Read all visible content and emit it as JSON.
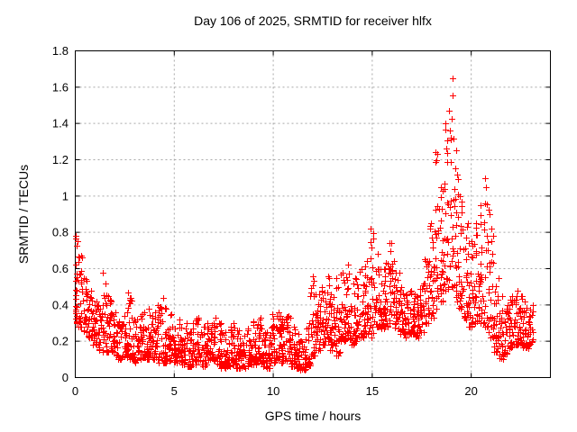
{
  "chart_data": {
    "type": "scatter",
    "title": "Day 106 of 2025, SRMTID for receiver hlfx",
    "xlabel": "GPS time / hours",
    "ylabel": "SRMTID / TECUs",
    "xlim": [
      0,
      24
    ],
    "ylim": [
      0,
      1.8
    ],
    "xticks": {
      "values": [
        0,
        5,
        10,
        15,
        20
      ],
      "labels": [
        "0",
        "5",
        "10",
        "15",
        "20"
      ]
    },
    "yticks": {
      "values": [
        0,
        0.2,
        0.4,
        0.6,
        0.8,
        1.0,
        1.2,
        1.4,
        1.6,
        1.8
      ],
      "labels": [
        "0",
        "0.2",
        "0.4",
        "0.6",
        "0.8",
        "1",
        "1.2",
        "1.4",
        "1.6",
        "1.8"
      ]
    },
    "grid": true,
    "grid_color": "#a8a8a8",
    "frame_color": "#000000",
    "legend": "none",
    "marker": {
      "shape": "plus",
      "size": 7,
      "color": "#ff0000"
    },
    "series": [
      {
        "name": "SRMTID",
        "color": "#ff0000",
        "points_per_bin": 24,
        "bin_width_hours": 0.25,
        "skew": 1.5,
        "seed": 7,
        "bins_format": [
          "hour",
          "min_tecu",
          "max_tecu"
        ],
        "bins": [
          [
            0,
            0.3,
            0.78
          ],
          [
            0.25,
            0.28,
            0.67
          ],
          [
            0.5,
            0.25,
            0.55
          ],
          [
            0.75,
            0.22,
            0.48
          ],
          [
            1,
            0.18,
            0.42
          ],
          [
            1.25,
            0.15,
            0.4
          ],
          [
            1.5,
            0.14,
            0.58
          ],
          [
            1.75,
            0.14,
            0.45
          ],
          [
            2,
            0.12,
            0.36
          ],
          [
            2.25,
            0.1,
            0.31
          ],
          [
            2.5,
            0.11,
            0.36
          ],
          [
            2.75,
            0.1,
            0.47
          ],
          [
            3,
            0.08,
            0.32
          ],
          [
            3.25,
            0.1,
            0.34
          ],
          [
            3.5,
            0.11,
            0.36
          ],
          [
            3.75,
            0.1,
            0.38
          ],
          [
            4,
            0.1,
            0.36
          ],
          [
            4.25,
            0.08,
            0.4
          ],
          [
            4.5,
            0.08,
            0.44
          ],
          [
            4.75,
            0.09,
            0.35
          ],
          [
            5,
            0.08,
            0.28
          ],
          [
            5.25,
            0.09,
            0.32
          ],
          [
            5.5,
            0.07,
            0.3
          ],
          [
            5.75,
            0.06,
            0.25
          ],
          [
            6,
            0.07,
            0.3
          ],
          [
            6.25,
            0.09,
            0.33
          ],
          [
            6.5,
            0.06,
            0.28
          ],
          [
            6.75,
            0.07,
            0.3
          ],
          [
            7,
            0.09,
            0.33
          ],
          [
            7.25,
            0.07,
            0.3
          ],
          [
            7.5,
            0.05,
            0.25
          ],
          [
            7.75,
            0.06,
            0.28
          ],
          [
            8,
            0.07,
            0.3
          ],
          [
            8.25,
            0.05,
            0.26
          ],
          [
            8.5,
            0.05,
            0.23
          ],
          [
            8.75,
            0.06,
            0.27
          ],
          [
            9,
            0.07,
            0.31
          ],
          [
            9.25,
            0.09,
            0.33
          ],
          [
            9.5,
            0.06,
            0.27
          ],
          [
            9.75,
            0.05,
            0.25
          ],
          [
            10,
            0.08,
            0.35
          ],
          [
            10.25,
            0.1,
            0.36
          ],
          [
            10.5,
            0.08,
            0.34
          ],
          [
            10.75,
            0.09,
            0.34
          ],
          [
            11,
            0.06,
            0.28
          ],
          [
            11.25,
            0.05,
            0.24
          ],
          [
            11.5,
            0.04,
            0.2
          ],
          [
            11.75,
            0.06,
            0.3
          ],
          [
            12,
            0.12,
            0.56
          ],
          [
            12.25,
            0.15,
            0.46
          ],
          [
            12.5,
            0.18,
            0.5
          ],
          [
            12.75,
            0.2,
            0.56
          ],
          [
            13,
            0.15,
            0.46
          ],
          [
            13.25,
            0.12,
            0.55
          ],
          [
            13.5,
            0.2,
            0.58
          ],
          [
            13.75,
            0.22,
            0.62
          ],
          [
            14,
            0.18,
            0.52
          ],
          [
            14.25,
            0.2,
            0.55
          ],
          [
            14.5,
            0.22,
            0.6
          ],
          [
            14.75,
            0.24,
            0.64
          ],
          [
            15,
            0.22,
            0.82
          ],
          [
            15.25,
            0.28,
            0.68
          ],
          [
            15.5,
            0.27,
            0.6
          ],
          [
            15.75,
            0.28,
            0.63
          ],
          [
            16,
            0.3,
            0.74
          ],
          [
            16.25,
            0.27,
            0.58
          ],
          [
            16.5,
            0.24,
            0.5
          ],
          [
            16.75,
            0.22,
            0.46
          ],
          [
            17,
            0.24,
            0.48
          ],
          [
            17.25,
            0.22,
            0.46
          ],
          [
            17.5,
            0.25,
            0.52
          ],
          [
            17.75,
            0.3,
            0.65
          ],
          [
            18,
            0.33,
            0.85
          ],
          [
            18.25,
            0.38,
            1.24
          ],
          [
            18.5,
            0.42,
            1.05
          ],
          [
            18.75,
            0.48,
            1.4
          ],
          [
            19,
            0.5,
            1.65
          ],
          [
            19.25,
            0.42,
            1.25
          ],
          [
            19.5,
            0.38,
            1.0
          ],
          [
            19.75,
            0.32,
            0.85
          ],
          [
            20,
            0.28,
            0.75
          ],
          [
            20.25,
            0.3,
            0.85
          ],
          [
            20.5,
            0.3,
            0.95
          ],
          [
            20.75,
            0.28,
            1.1
          ],
          [
            21,
            0.22,
            0.9
          ],
          [
            21.25,
            0.14,
            0.55
          ],
          [
            21.5,
            0.1,
            0.45
          ],
          [
            21.75,
            0.13,
            0.4
          ],
          [
            22,
            0.16,
            0.45
          ],
          [
            22.25,
            0.18,
            0.48
          ],
          [
            22.5,
            0.18,
            0.45
          ],
          [
            22.75,
            0.16,
            0.42
          ],
          [
            23,
            0.18,
            0.4
          ]
        ]
      }
    ]
  }
}
